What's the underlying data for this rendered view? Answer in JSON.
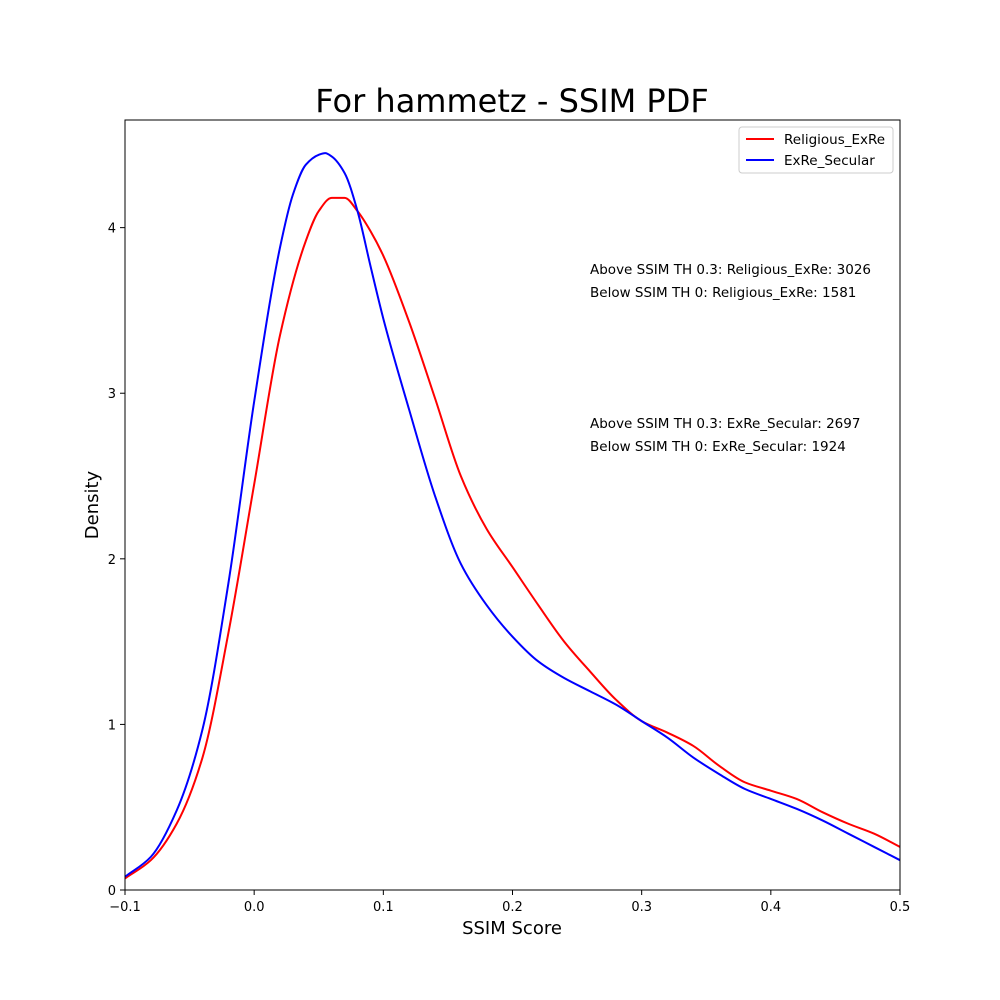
{
  "chart_data": {
    "type": "line",
    "title": "For hammetz - SSIM PDF",
    "xlabel": "SSIM Score",
    "ylabel": "Density",
    "xlim": [
      -0.1,
      0.5
    ],
    "ylim": [
      0,
      4.65
    ],
    "xticks": [
      -0.1,
      0.0,
      0.1,
      0.2,
      0.3,
      0.4,
      0.5
    ],
    "xtick_labels": [
      "−0.1",
      "0.0",
      "0.1",
      "0.2",
      "0.3",
      "0.4",
      "0.5"
    ],
    "yticks": [
      0,
      1,
      2,
      3,
      4
    ],
    "ytick_labels": [
      "0",
      "1",
      "2",
      "3",
      "4"
    ],
    "grid": false,
    "legend_position": "top-right",
    "series": [
      {
        "name": "Religious_ExRe",
        "color": "#ff0000",
        "x": [
          -0.1,
          -0.08,
          -0.06,
          -0.04,
          -0.02,
          0.0,
          0.02,
          0.04,
          0.05,
          0.06,
          0.07,
          0.08,
          0.09,
          0.1,
          0.12,
          0.14,
          0.16,
          0.18,
          0.2,
          0.22,
          0.24,
          0.26,
          0.28,
          0.3,
          0.32,
          0.34,
          0.36,
          0.38,
          0.4,
          0.42,
          0.44,
          0.46,
          0.48,
          0.5
        ],
        "y": [
          0.07,
          0.18,
          0.4,
          0.8,
          1.55,
          2.45,
          3.35,
          3.92,
          4.1,
          4.18,
          4.18,
          4.1,
          3.98,
          3.83,
          3.43,
          2.97,
          2.5,
          2.18,
          1.95,
          1.72,
          1.5,
          1.32,
          1.15,
          1.02,
          0.95,
          0.87,
          0.75,
          0.65,
          0.6,
          0.55,
          0.47,
          0.4,
          0.34,
          0.26
        ]
      },
      {
        "name": "ExRe_Secular",
        "color": "#0000ff",
        "x": [
          -0.1,
          -0.08,
          -0.06,
          -0.04,
          -0.02,
          0.0,
          0.02,
          0.03,
          0.04,
          0.05,
          0.055,
          0.06,
          0.07,
          0.08,
          0.09,
          0.1,
          0.12,
          0.14,
          0.16,
          0.18,
          0.2,
          0.22,
          0.24,
          0.26,
          0.28,
          0.3,
          0.32,
          0.34,
          0.36,
          0.38,
          0.4,
          0.42,
          0.44,
          0.46,
          0.48,
          0.5
        ],
        "y": [
          0.08,
          0.2,
          0.48,
          0.97,
          1.85,
          2.95,
          3.88,
          4.2,
          4.38,
          4.44,
          4.45,
          4.43,
          4.33,
          4.1,
          3.77,
          3.45,
          2.9,
          2.38,
          1.97,
          1.72,
          1.53,
          1.38,
          1.28,
          1.2,
          1.12,
          1.02,
          0.92,
          0.8,
          0.7,
          0.61,
          0.55,
          0.49,
          0.42,
          0.34,
          0.26,
          0.18
        ]
      }
    ],
    "annotations": [
      "Above SSIM TH 0.3: Religious_ExRe: 3026",
      "Below SSIM TH 0: Religious_ExRe: 1581",
      "Above SSIM TH 0.3: ExRe_Secular: 2697",
      "Below SSIM TH 0: ExRe_Secular: 1924"
    ]
  }
}
